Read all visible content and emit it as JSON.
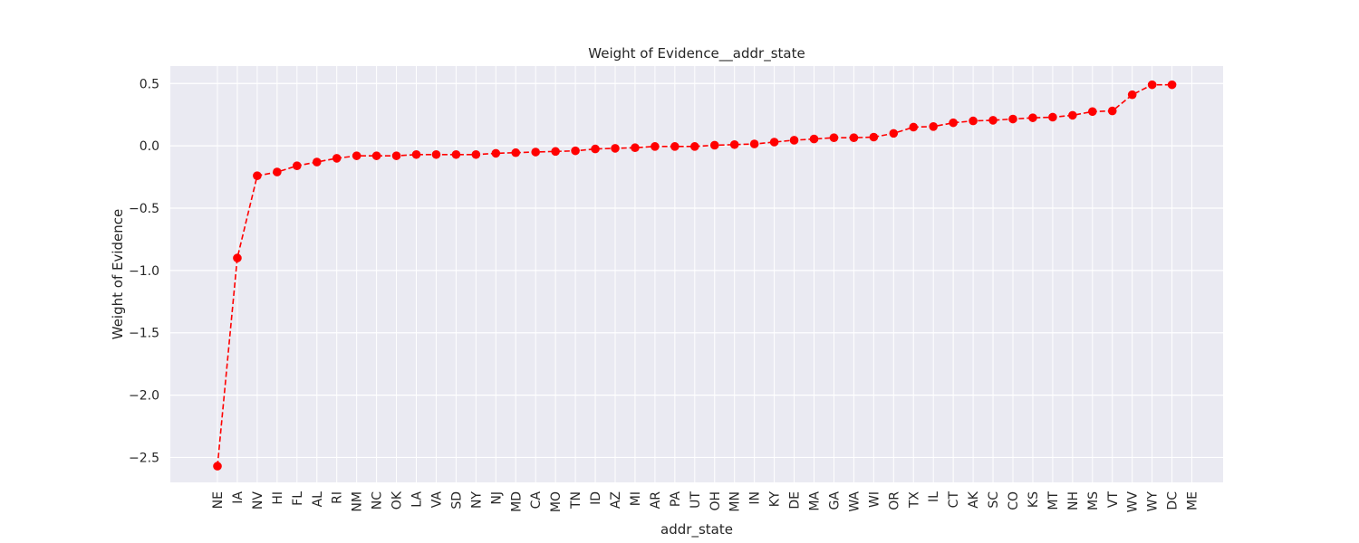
{
  "chart_data": {
    "type": "line",
    "title": "Weight of Evidence__addr_state",
    "xlabel": "addr_state",
    "ylabel": "Weight of Evidence",
    "ylim": [
      -2.7,
      0.64
    ],
    "yticks": [
      0.5,
      0.0,
      -0.5,
      -1.0,
      -1.5,
      -2.0,
      -2.5
    ],
    "ytick_labels": [
      "0.5",
      "0.0",
      "−0.5",
      "−1.0",
      "−1.5",
      "−2.0",
      "−2.5"
    ],
    "grid": true,
    "style": {
      "line_color": "#ff0000",
      "line_style": "dashed",
      "marker": "circle",
      "background": "#eaeaf2",
      "grid_color": "#ffffff"
    },
    "categories": [
      "NE",
      "IA",
      "NV",
      "HI",
      "FL",
      "AL",
      "RI",
      "NM",
      "NC",
      "OK",
      "LA",
      "VA",
      "SD",
      "NY",
      "NJ",
      "MD",
      "CA",
      "MO",
      "TN",
      "ID",
      "AZ",
      "MI",
      "AR",
      "PA",
      "UT",
      "OH",
      "MN",
      "IN",
      "KY",
      "DE",
      "MA",
      "GA",
      "WA",
      "WI",
      "OR",
      "TX",
      "IL",
      "CT",
      "AK",
      "SC",
      "CO",
      "KS",
      "MT",
      "NH",
      "MS",
      "VT",
      "WV",
      "WY",
      "DC",
      "ME"
    ],
    "values": [
      -2.57,
      -0.9,
      -0.24,
      -0.21,
      -0.16,
      -0.13,
      -0.1,
      -0.08,
      -0.08,
      -0.08,
      -0.07,
      -0.07,
      -0.07,
      -0.07,
      -0.06,
      -0.055,
      -0.05,
      -0.045,
      -0.04,
      -0.025,
      -0.02,
      -0.015,
      -0.005,
      -0.005,
      -0.005,
      0.005,
      0.01,
      0.015,
      0.03,
      0.045,
      0.055,
      0.065,
      0.065,
      0.07,
      0.1,
      0.15,
      0.155,
      0.185,
      0.2,
      0.205,
      0.215,
      0.225,
      0.23,
      0.245,
      0.275,
      0.28,
      0.41,
      0.49,
      0.49,
      null
    ]
  }
}
